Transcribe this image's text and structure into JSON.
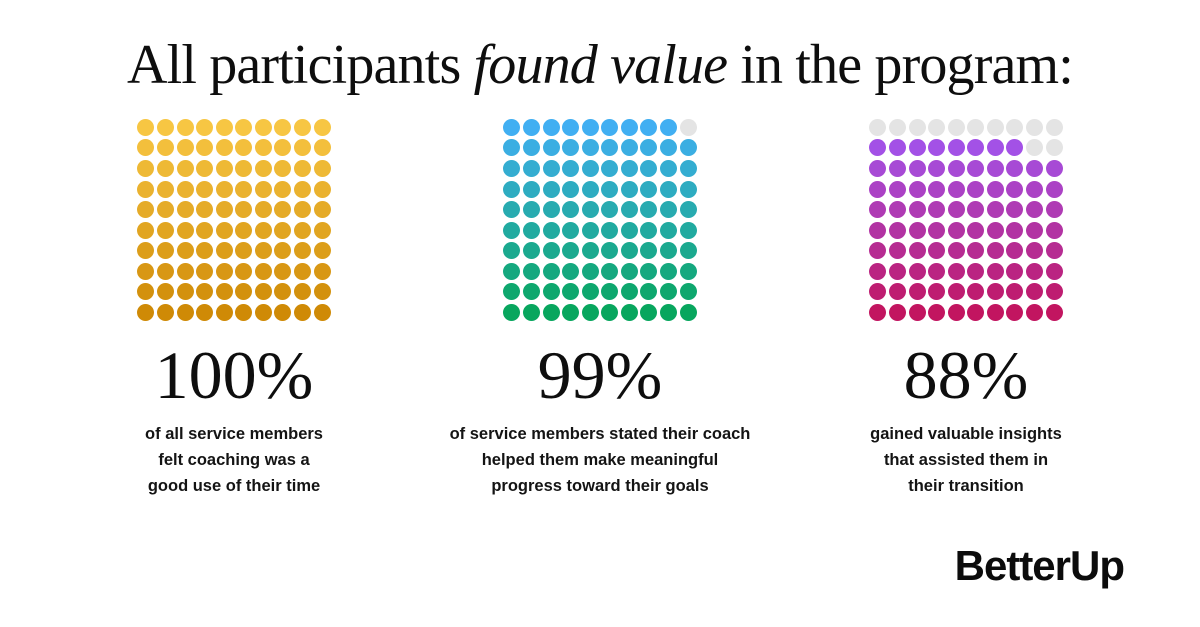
{
  "title": {
    "pre": "All participants ",
    "italic": "found value",
    "post": " in the program:"
  },
  "chart_data": [
    {
      "type": "waffle",
      "grid_rows": 10,
      "grid_cols": 10,
      "value": 100,
      "total": 100,
      "percent_label": "100%",
      "caption": "of all service members\nfelt coaching was a\ngood use of their time",
      "color_top": "#F7C643",
      "color_bottom": "#CF8A06",
      "color_empty": "#E4E4E4"
    },
    {
      "type": "waffle",
      "grid_rows": 10,
      "grid_cols": 10,
      "value": 99,
      "total": 100,
      "percent_label": "99%",
      "caption": "of service members stated their coach\nhelped them make meaningful\nprogress toward their goals",
      "color_top": "#41AFF2",
      "color_bottom": "#08A65E",
      "color_empty": "#E4E4E4"
    },
    {
      "type": "waffle",
      "grid_rows": 10,
      "grid_cols": 10,
      "value": 88,
      "total": 100,
      "percent_label": "88%",
      "caption": "gained valuable insights\nthat assisted them in\ntheir transition",
      "color_top": "#9F59F7",
      "color_bottom": "#C21560",
      "color_empty": "#E4E4E4"
    }
  ],
  "logo": {
    "text": "BetterUp"
  }
}
